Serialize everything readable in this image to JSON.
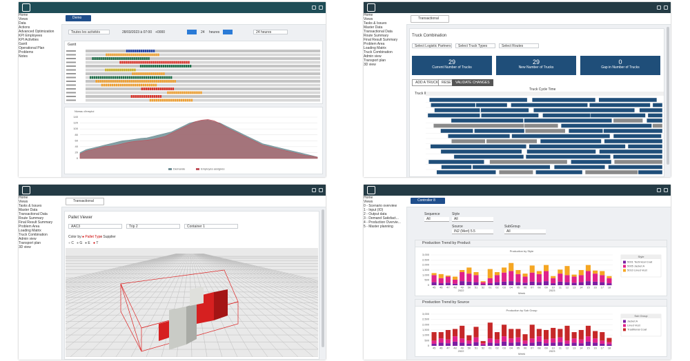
{
  "panels": [
    {
      "tab": "Demo",
      "nav": [
        "Home",
        "Views",
        "Data",
        "Actions",
        "Advanced Optimization",
        "KPI Employees",
        "KPI Activities",
        "Gantt",
        "Operational Plan",
        "Problems",
        "Notes"
      ],
      "active": 7,
      "toolbar": [
        "Toutes les activités",
        "28/03/2023 à 07:00",
        "+0000",
        "24",
        "heures",
        "24 heures"
      ],
      "gantt_title": "Gantt",
      "chart_data": {
        "type": "area",
        "title": "Niveau d'emploi",
        "series": [
          {
            "name": "Demande",
            "color": "#6f8f95",
            "values": [
              20,
              30,
              35,
              40,
              45,
              50,
              55,
              60,
              62,
              65,
              68,
              70,
              75,
              80,
              85,
              90,
              100,
              110,
              120,
              125,
              128,
              130,
              125,
              120,
              110,
              100,
              90,
              80,
              70,
              60,
              50,
              45,
              40,
              35,
              30,
              25,
              20,
              15,
              10,
              5
            ]
          },
          {
            "name": "Employés assignés",
            "color": "#c0505a",
            "values": [
              15,
              25,
              30,
              35,
              40,
              42,
              45,
              50,
              55,
              58,
              60,
              62,
              65,
              70,
              75,
              85,
              95,
              105,
              115,
              125,
              130,
              132,
              128,
              118,
              105,
              95,
              85,
              75,
              65,
              55,
              45,
              40,
              35,
              30,
              25,
              20,
              15,
              10,
              8,
              4
            ]
          }
        ],
        "ylim": [
          0,
          140
        ],
        "yticks": [
          0,
          20,
          40,
          60,
          80,
          100,
          120,
          140
        ],
        "grid": true
      }
    },
    {
      "tab": "Transactional",
      "nav": [
        "Home",
        "Views",
        "Tasks & Issues",
        "Master Data",
        "Transactional Data",
        "Route Summary",
        "Final Result Summary",
        "Problem Area",
        "Loading Matrix",
        "Truck Combination",
        "Admin view",
        "Transport plan",
        "3D view"
      ],
      "active": 9,
      "title": "Truck Combination",
      "filters": [
        "Select Logistic Partners",
        "Select Truck Types",
        "Select Routes"
      ],
      "kpis": [
        {
          "value": 29,
          "label": "Current Number of Trucks"
        },
        {
          "value": 29,
          "label": "New Number of Trucks"
        },
        {
          "value": 0,
          "label": "Gap in Number of Trucks"
        }
      ],
      "buttons": [
        "ADD A TRUCK",
        "RESET",
        "VALIDATE CHANGES"
      ],
      "table_header": [
        "Truck ID",
        "Truck Cycle Time"
      ]
    },
    {
      "tab": "Transactional",
      "nav": [
        "Home",
        "Views",
        "Tasks & Issues",
        "Master Data",
        "Transactional Data",
        "Route Summary",
        "Final Result Summary",
        "Problem Area",
        "Loading Matrix",
        "Truck Combination",
        "Admin view",
        "Transport plan",
        "3D view"
      ],
      "active": 12,
      "title": "Pallet Viewer",
      "selects": [
        "AAC3",
        "Trip 2",
        "Container 1"
      ],
      "color_by": "Color by:",
      "color_options": [
        "Pallet Type",
        "Supplier"
      ],
      "legend": [
        "C",
        "G",
        "E",
        "T"
      ]
    },
    {
      "tab": "Controller 8",
      "nav": [
        "Home",
        "Views",
        "0 - Scenario overview",
        "1 - Input (IO)",
        "2 - Output data",
        "3 - Demand Satisfact...",
        "4 - Production Overvie...",
        "5 - Master planning"
      ],
      "active": 6,
      "filters": [
        {
          "label": "Sequence",
          "value": "All"
        },
        {
          "label": "Style",
          "value": "All"
        },
        {
          "label": "Source",
          "value": "IN2 (Mert) 5.5"
        },
        {
          "label": "SubGroup",
          "value": "All"
        }
      ],
      "sections": [
        {
          "header": "Production Trend by Product",
          "chart_data": {
            "type": "stacked-bar",
            "title": "Production by Style",
            "x_label": "Week",
            "years": [
              "2022",
              "2023"
            ],
            "legend_title": "Style",
            "categories": [
              "45",
              "46",
              "47",
              "48",
              "49",
              "50",
              "51",
              "52",
              "01",
              "02",
              "03",
              "04",
              "05",
              "06",
              "07",
              "08",
              "09",
              "10",
              "11",
              "12",
              "13",
              "14",
              "15",
              "16",
              "17",
              "18"
            ],
            "series": [
              {
                "name": "5001 Technical Coat",
                "color": "#7b1fa2",
                "values": [
                  300,
                  200,
                  250,
                  150,
                  400,
                  350,
                  300,
                  100,
                  200,
                  300,
                  350,
                  400,
                  300,
                  250,
                  350,
                  300,
                  400,
                  200,
                  350,
                  300,
                  250,
                  300,
                  400,
                  350,
                  300,
                  200
                ]
              },
              {
                "name": "5005 Jacket A",
                "color": "#e0218a",
                "values": [
                  700,
                  500,
                  600,
                  400,
                  900,
                  800,
                  700,
                  200,
                  500,
                  700,
                  900,
                  1000,
                  800,
                  600,
                  900,
                  800,
                  1000,
                  500,
                  800,
                  700,
                  600,
                  700,
                  1000,
                  800,
                  700,
                  500
                ]
              },
              {
                "name": "5010 Lined Vest",
                "color": "#f5a623",
                "values": [
                  200,
                  400,
                  100,
                  300,
                  200,
                  600,
                  300,
                  100,
                  900,
                  300,
                  500,
                  800,
                  400,
                  300,
                  700,
                  300,
                  600,
                  200,
                  400,
                  900,
                  200,
                  500,
                  600,
                  300,
                  400,
                  200
                ]
              }
            ],
            "ylim": [
              0,
              3000
            ],
            "yticks": [
              0,
              500,
              {
                "value": 1000,
                "label": "1,000"
              },
              {
                "value": 1500,
                "label": "1,500"
              },
              {
                "value": 2000,
                "label": "2,000"
              },
              {
                "value": 2500,
                "label": "2,500"
              },
              {
                "value": 3000,
                "label": "3,000"
              }
            ]
          }
        },
        {
          "header": "Production Trend by Source",
          "chart_data": {
            "type": "stacked-bar",
            "title": "Production by Sub Group",
            "x_label": "Week",
            "years": [
              "2022",
              "2023"
            ],
            "legend_title": "Sub Group",
            "categories": [
              "45",
              "46",
              "47",
              "48",
              "49",
              "50",
              "51",
              "52",
              "01",
              "02",
              "03",
              "04",
              "05",
              "06",
              "07",
              "08",
              "09",
              "10",
              "11",
              "12",
              "13",
              "14",
              "15",
              "16",
              "17",
              "18"
            ],
            "series": [
              {
                "name": "Jacket A",
                "color": "#7b1fa2",
                "values": [
                  200,
                  300,
                  250,
                  400,
                  300,
                  200,
                  350,
                  100,
                  300,
                  250,
                  400,
                  300,
                  350,
                  200,
                  300,
                  400,
                  250,
                  300,
                  350,
                  200,
                  300,
                  250,
                  400,
                  300,
                  200,
                  150
                ]
              },
              {
                "name": "Lined Vest",
                "color": "#e0218a",
                "values": [
                  300,
                  400,
                  350,
                  500,
                  400,
                  300,
                  450,
                  150,
                  400,
                  350,
                  500,
                  400,
                  450,
                  300,
                  400,
                  500,
                  350,
                  400,
                  450,
                  300,
                  400,
                  350,
                  500,
                  400,
                  300,
                  200
                ]
              },
              {
                "name": "Traditional Coat",
                "color": "#c62828",
                "values": [
                  800,
                  600,
                  900,
                  700,
                  1200,
                  500,
                  1000,
                  200,
                  1500,
                  700,
                  1100,
                  900,
                  800,
                  600,
                  1300,
                  700,
                  900,
                  1000,
                  800,
                  1400,
                  600,
                  900,
                  1000,
                  700,
                  800,
                  400
                ]
              }
            ],
            "ylim": [
              0,
              3000
            ],
            "yticks": [
              0,
              500,
              {
                "value": 1000,
                "label": "1,000"
              },
              {
                "value": 1500,
                "label": "1,500"
              },
              {
                "value": 2000,
                "label": "2,000"
              },
              {
                "value": 2500,
                "label": "2,500"
              },
              {
                "value": 3000,
                "label": "3,000"
              }
            ]
          }
        }
      ]
    }
  ]
}
